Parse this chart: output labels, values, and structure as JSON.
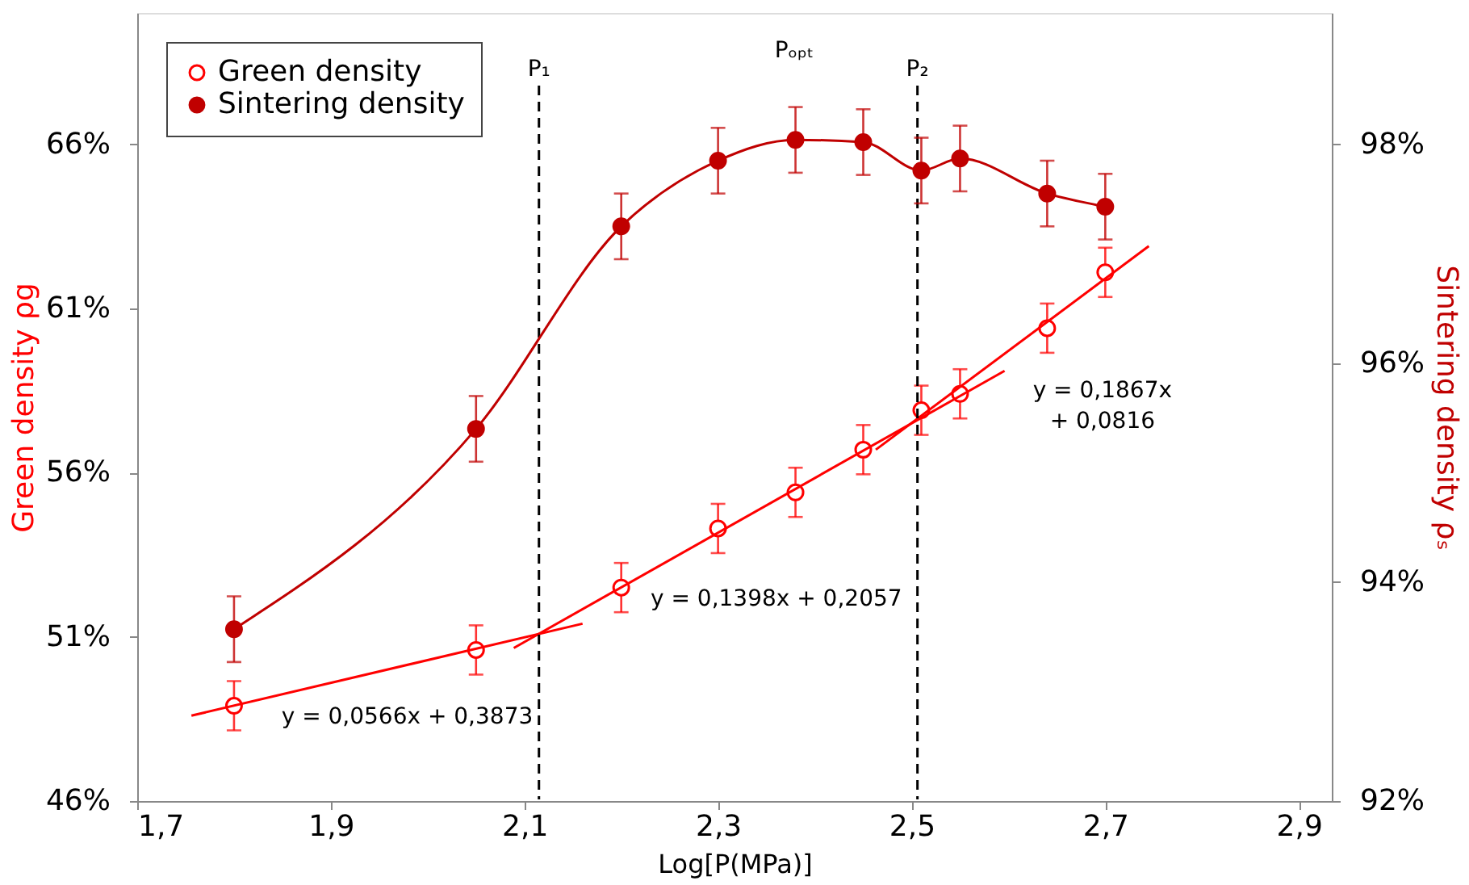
{
  "chart_data": {
    "type": "scatter",
    "xlabel": "Log[P(MPa)]",
    "ylabel": "Green density ρg",
    "y2label": "Sintering density ρₛ",
    "xlim": [
      1.7,
      2.934
    ],
    "ylim": [
      46,
      70
    ],
    "y2lim": [
      92,
      99.2
    ],
    "xticks": [
      {
        "value": 1.7,
        "label": "1,7"
      },
      {
        "value": 1.9,
        "label": "1,9"
      },
      {
        "value": 2.1,
        "label": "2,1"
      },
      {
        "value": 2.3,
        "label": "2,3"
      },
      {
        "value": 2.5,
        "label": "2,5"
      },
      {
        "value": 2.7,
        "label": "2,7"
      },
      {
        "value": 2.9,
        "label": "2,9"
      }
    ],
    "yticks": [
      {
        "value": 46,
        "label": "46%"
      },
      {
        "value": 51,
        "label": "51%"
      },
      {
        "value": 56,
        "label": "56%"
      },
      {
        "value": 61,
        "label": "61%"
      },
      {
        "value": 66,
        "label": "66%"
      }
    ],
    "y2ticks": [
      {
        "value": 92,
        "label": "92%"
      },
      {
        "value": 94,
        "label": "94%"
      },
      {
        "value": 96,
        "label": "96%"
      },
      {
        "value": 98,
        "label": "98%"
      }
    ],
    "legend": "top left",
    "series": [
      {
        "name": "Green density",
        "marker": "circle",
        "color": "#ff0000",
        "x": [
          1.8,
          2.05,
          2.2,
          2.3,
          2.38,
          2.45,
          2.51,
          2.55,
          2.64,
          2.7
        ],
        "values": [
          48.9,
          50.6,
          52.5,
          54.3,
          55.4,
          56.7,
          57.9,
          58.4,
          60.4,
          62.1
        ],
        "errors": [
          0.75,
          0.75,
          0.75,
          0.75,
          0.75,
          0.75,
          0.75,
          0.75,
          0.75,
          0.75
        ]
      },
      {
        "name": "Sintering density",
        "type": "line",
        "marker": "circle",
        "axis": "y2",
        "color": "#c00000",
        "x": [
          1.8,
          2.05,
          2.2,
          2.3,
          2.38,
          2.45,
          2.51,
          2.55,
          2.64,
          2.7
        ],
        "values": [
          93.57,
          95.4,
          97.25,
          97.85,
          98.04,
          98.02,
          97.76,
          97.87,
          97.55,
          97.43
        ],
        "errors": [
          0.3,
          0.3,
          0.3,
          0.3,
          0.3,
          0.3,
          0.3,
          0.3,
          0.3,
          0.3
        ]
      },
      {
        "type": "line",
        "marker": "none",
        "color": "#ff0000",
        "x": [
          1.756,
          2.16
        ],
        "values": [
          48.6,
          51.4
        ]
      },
      {
        "type": "line",
        "marker": "none",
        "color": "#ff0000",
        "x": [
          2.089,
          2.596
        ],
        "values": [
          50.66,
          59.1
        ]
      },
      {
        "type": "line",
        "marker": "none",
        "color": "#ff0000",
        "x": [
          2.463,
          2.745
        ],
        "values": [
          56.7,
          62.9
        ]
      }
    ],
    "ref_lines": [
      {
        "axis": "x",
        "value": 2.115,
        "label": "P₁",
        "color": "#000000",
        "line_style": "dashed"
      },
      {
        "axis": "x",
        "value": 2.506,
        "label": "P₂",
        "color": "#000000",
        "line_style": "dashed"
      }
    ],
    "annotations": [
      "y = 0,0566x + 0,3873",
      "y = 0,1398x + 0,2057",
      "y = 0,1867x",
      "+ 0,0816",
      "Pₒₚₜ"
    ]
  }
}
